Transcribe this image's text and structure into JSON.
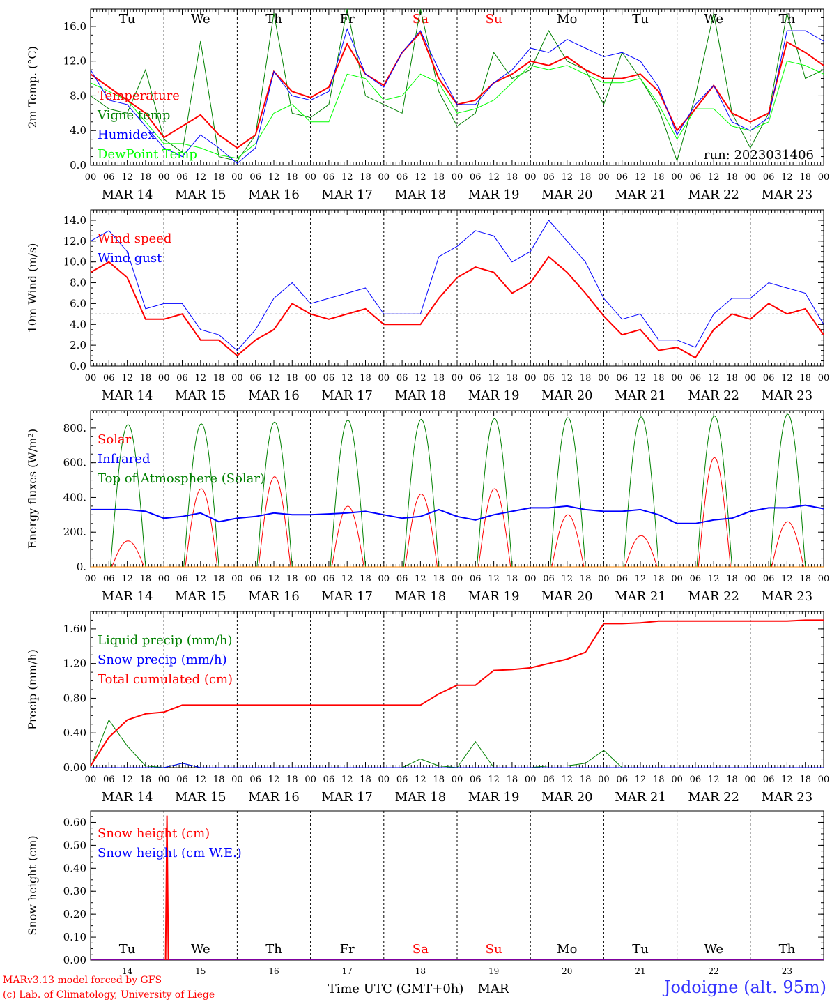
{
  "site": "Jodoigne (alt. 95m)",
  "footer": {
    "model": "MARv3.13 model forced by GFS",
    "lab": "(c) Lab. of Climatology, University of Liege"
  },
  "chart_data": [
    {
      "type": "line",
      "id": "temp",
      "ylabel": "2m Temp. (°C)",
      "ylim": [
        0,
        18
      ],
      "yticks": [
        "0.0",
        "4.0",
        "8.0",
        "12.0",
        "16.0"
      ],
      "annotation": "run: 2023031406",
      "day_labels": [
        "Tu",
        "We",
        "Th",
        "Fr",
        "Sa",
        "Su",
        "Mo",
        "Tu",
        "We",
        "Th"
      ],
      "date_labels": [
        "MAR 14",
        "MAR 15",
        "MAR 16",
        "MAR 17",
        "MAR 18",
        "MAR 19",
        "MAR 20",
        "MAR 21",
        "MAR 22",
        "MAR 23"
      ],
      "hour_labels": [
        "00",
        "06",
        "12",
        "18"
      ],
      "x_hours": [
        0,
        6,
        12,
        18,
        24,
        30,
        36,
        42,
        48,
        54,
        60,
        66,
        72,
        78,
        84,
        90,
        96,
        102,
        108,
        114,
        120,
        126,
        132,
        138,
        144,
        150,
        156,
        162,
        168,
        174,
        180,
        186,
        192,
        198,
        204,
        210,
        216,
        222,
        228,
        234,
        240
      ],
      "series": [
        {
          "name": "Temperature",
          "color": "#ff0000",
          "width": 2,
          "values": [
            10.5,
            9.0,
            7.5,
            6.0,
            3.2,
            4.5,
            5.8,
            3.5,
            2.0,
            3.5,
            10.8,
            8.5,
            7.8,
            9.0,
            14.0,
            10.5,
            9.2,
            13.0,
            15.3,
            10.0,
            7.0,
            7.5,
            9.5,
            10.5,
            12.0,
            11.5,
            12.5,
            11.0,
            10.0,
            10.0,
            10.5,
            8.5,
            4.0,
            6.5,
            9.2,
            6.0,
            5.0,
            6.0,
            14.2,
            13.0,
            11.5
          ]
        },
        {
          "name": "Vigne temp",
          "color": "#008000",
          "width": 1,
          "values": [
            8.0,
            6.5,
            6.0,
            11.0,
            3.0,
            1.5,
            14.3,
            1.0,
            0.5,
            3.5,
            17.5,
            6.0,
            5.5,
            7.0,
            18.0,
            8.0,
            7.0,
            6.0,
            18.0,
            8.5,
            4.5,
            6.0,
            13.0,
            10.0,
            11.0,
            15.5,
            12.0,
            11.0,
            7.0,
            13.0,
            10.0,
            6.5,
            0.5,
            8.0,
            17.5,
            6.0,
            2.0,
            6.0,
            17.5,
            10.0,
            11.0
          ]
        },
        {
          "name": "Humidex",
          "color": "#0000ff",
          "width": 1,
          "values": [
            11.0,
            7.5,
            7.0,
            4.5,
            2.0,
            1.0,
            3.5,
            2.0,
            0.2,
            2.0,
            10.8,
            8.0,
            7.5,
            8.5,
            15.7,
            10.5,
            9.0,
            13.0,
            15.5,
            11.0,
            7.0,
            7.0,
            9.5,
            11.0,
            13.5,
            13.0,
            14.5,
            13.5,
            12.5,
            13.0,
            12.0,
            9.0,
            3.5,
            7.0,
            9.2,
            5.0,
            4.0,
            5.5,
            15.5,
            15.5,
            14.3
          ]
        },
        {
          "name": "DewPoint Temp",
          "color": "#00ff00",
          "width": 1,
          "values": [
            9.5,
            8.5,
            7.5,
            5.0,
            2.5,
            2.5,
            2.0,
            1.2,
            0.8,
            2.5,
            6.0,
            7.0,
            5.0,
            5.0,
            10.5,
            10.0,
            7.5,
            8.0,
            10.5,
            9.5,
            6.0,
            6.5,
            7.5,
            9.5,
            11.5,
            11.0,
            11.5,
            10.5,
            9.5,
            9.5,
            10.0,
            7.0,
            3.0,
            6.5,
            6.5,
            4.5,
            4.0,
            5.0,
            12.0,
            11.5,
            10.5
          ]
        }
      ]
    },
    {
      "type": "line",
      "id": "wind",
      "ylabel": "10m Wind (m/s)",
      "ylim": [
        0,
        15
      ],
      "yticks": [
        "0.0",
        "2.0",
        "4.0",
        "6.0",
        "8.0",
        "10.0",
        "12.0",
        "14.0"
      ],
      "reference_line": 5.0,
      "date_labels": [
        "MAR 14",
        "MAR 15",
        "MAR 16",
        "MAR 17",
        "MAR 18",
        "MAR 19",
        "MAR 20",
        "MAR 21",
        "MAR 22",
        "MAR 23"
      ],
      "hour_labels": [
        "00",
        "06",
        "12",
        "18"
      ],
      "x_hours": [
        0,
        6,
        12,
        18,
        24,
        30,
        36,
        42,
        48,
        54,
        60,
        66,
        72,
        78,
        84,
        90,
        96,
        102,
        108,
        114,
        120,
        126,
        132,
        138,
        144,
        150,
        156,
        162,
        168,
        174,
        180,
        186,
        192,
        198,
        204,
        210,
        216,
        222,
        228,
        234,
        240
      ],
      "series": [
        {
          "name": "Wind speed",
          "color": "#ff0000",
          "width": 2,
          "values": [
            9.0,
            10.0,
            8.5,
            4.5,
            4.5,
            5.0,
            2.5,
            2.5,
            1.0,
            2.5,
            3.5,
            6.0,
            5.0,
            4.5,
            5.0,
            5.5,
            4.0,
            4.0,
            4.0,
            6.5,
            8.5,
            9.5,
            9.0,
            7.0,
            8.0,
            10.5,
            9.0,
            7.0,
            4.8,
            3.0,
            3.5,
            1.5,
            1.8,
            0.8,
            3.5,
            5.0,
            4.5,
            6.0,
            5.0,
            5.5,
            3.0
          ]
        },
        {
          "name": "Wind gust",
          "color": "#0000ff",
          "width": 1,
          "values": [
            12.0,
            13.0,
            11.0,
            5.5,
            6.0,
            6.0,
            3.5,
            3.0,
            1.5,
            3.5,
            6.5,
            8.0,
            6.0,
            6.5,
            7.0,
            7.5,
            5.0,
            5.0,
            5.0,
            10.5,
            11.5,
            13.0,
            12.5,
            10.0,
            11.0,
            14.0,
            12.0,
            10.0,
            6.5,
            4.5,
            5.0,
            2.5,
            2.5,
            1.8,
            5.0,
            6.5,
            6.5,
            8.0,
            7.5,
            7.0,
            4.0
          ]
        }
      ]
    },
    {
      "type": "line",
      "id": "energy",
      "ylabel": "Energy fluxes (W/m²)",
      "ylim": [
        0,
        900
      ],
      "yticks": [
        "0.",
        "200.",
        "400.",
        "600.",
        "800."
      ],
      "date_labels": [
        "MAR 14",
        "MAR 15",
        "MAR 16",
        "MAR 17",
        "MAR 18",
        "MAR 19",
        "MAR 20",
        "MAR 21",
        "MAR 22",
        "MAR 23"
      ],
      "hour_labels": [
        "00",
        "06",
        "12",
        "18"
      ],
      "x_hours": [
        0,
        6,
        12,
        18,
        24,
        30,
        36,
        42,
        48,
        54,
        60,
        66,
        72,
        78,
        84,
        90,
        96,
        102,
        108,
        114,
        120,
        126,
        132,
        138,
        144,
        150,
        156,
        162,
        168,
        174,
        180,
        186,
        192,
        198,
        204,
        210,
        216,
        222,
        228,
        234,
        240
      ],
      "toa_peaks": [
        820,
        825,
        835,
        845,
        850,
        855,
        860,
        865,
        870,
        880
      ],
      "series": [
        {
          "name": "Solar",
          "color": "#ff0000",
          "width": 1,
          "values": [
            0,
            0,
            150,
            0,
            0,
            0,
            450,
            0,
            0,
            0,
            520,
            0,
            0,
            0,
            350,
            0,
            0,
            0,
            420,
            0,
            0,
            0,
            450,
            0,
            0,
            0,
            300,
            0,
            0,
            0,
            180,
            0,
            0,
            0,
            630,
            0,
            0,
            0,
            260,
            0,
            0
          ]
        },
        {
          "name": "Infrared",
          "color": "#0000ff",
          "width": 2,
          "values": [
            330,
            330,
            330,
            320,
            280,
            290,
            310,
            260,
            280,
            290,
            310,
            300,
            300,
            305,
            310,
            320,
            300,
            280,
            290,
            330,
            290,
            270,
            300,
            320,
            340,
            340,
            350,
            330,
            320,
            320,
            330,
            300,
            250,
            250,
            270,
            280,
            320,
            340,
            340,
            355,
            335
          ]
        },
        {
          "name": "Top of Atmosphere (Solar)",
          "color": "#008000",
          "width": 1,
          "values": [
            0,
            0,
            800,
            0,
            0,
            0,
            810,
            0,
            0,
            0,
            820,
            0,
            0,
            0,
            830,
            0,
            0,
            0,
            840,
            0,
            0,
            0,
            845,
            0,
            0,
            0,
            850,
            0,
            0,
            0,
            855,
            0,
            0,
            0,
            860,
            0,
            0,
            0,
            865,
            0,
            0
          ]
        }
      ]
    },
    {
      "type": "line",
      "id": "precip",
      "ylabel": "Precip (mm/h)",
      "ylim": [
        0,
        1.8
      ],
      "yticks": [
        "0.00",
        "0.40",
        "0.80",
        "1.20",
        "1.60"
      ],
      "date_labels": [
        "MAR 14",
        "MAR 15",
        "MAR 16",
        "MAR 17",
        "MAR 18",
        "MAR 19",
        "MAR 20",
        "MAR 21",
        "MAR 22",
        "MAR 23"
      ],
      "hour_labels": [
        "00",
        "06",
        "12",
        "18"
      ],
      "x_hours": [
        0,
        6,
        12,
        18,
        24,
        30,
        36,
        42,
        48,
        54,
        60,
        66,
        72,
        78,
        84,
        90,
        96,
        102,
        108,
        114,
        120,
        126,
        132,
        138,
        144,
        150,
        156,
        162,
        168,
        174,
        180,
        186,
        192,
        198,
        204,
        210,
        216,
        222,
        228,
        234,
        240
      ],
      "series": [
        {
          "name": "Liquid precip (mm/h)",
          "color": "#008000",
          "width": 1,
          "values": [
            0,
            0.55,
            0.25,
            0.02,
            0,
            0.05,
            0,
            0,
            0,
            0,
            0,
            0,
            0,
            0,
            0,
            0,
            0,
            0,
            0.1,
            0.02,
            0,
            0.3,
            0,
            0,
            0,
            0.02,
            0.02,
            0.05,
            0.2,
            0,
            0,
            0,
            0,
            0,
            0,
            0,
            0,
            0,
            0,
            0,
            0
          ]
        },
        {
          "name": "Snow precip (mm/h)",
          "color": "#0000ff",
          "width": 1,
          "values": [
            0,
            0,
            0,
            0,
            0,
            0.05,
            0,
            0,
            0,
            0,
            0,
            0,
            0,
            0,
            0,
            0,
            0,
            0,
            0,
            0,
            0,
            0,
            0,
            0,
            0,
            0,
            0,
            0,
            0,
            0,
            0,
            0,
            0,
            0,
            0,
            0,
            0,
            0,
            0,
            0,
            0
          ]
        },
        {
          "name": "Total cumulated (cm)",
          "color": "#ff0000",
          "width": 2,
          "values": [
            0.02,
            0.35,
            0.55,
            0.62,
            0.64,
            0.72,
            0.72,
            0.72,
            0.72,
            0.72,
            0.72,
            0.72,
            0.72,
            0.72,
            0.72,
            0.72,
            0.72,
            0.72,
            0.72,
            0.85,
            0.95,
            0.95,
            1.12,
            1.13,
            1.15,
            1.2,
            1.25,
            1.33,
            1.66,
            1.66,
            1.67,
            1.69,
            1.69,
            1.69,
            1.69,
            1.69,
            1.69,
            1.69,
            1.69,
            1.7,
            1.7
          ]
        }
      ]
    },
    {
      "type": "line",
      "id": "snow",
      "ylabel": "Snow height (cm)",
      "ylim": [
        0,
        0.65
      ],
      "yticks": [
        "0.00",
        "0.10",
        "0.20",
        "0.30",
        "0.40",
        "0.50",
        "0.60"
      ],
      "day_labels": [
        "Tu",
        "We",
        "Th",
        "Fr",
        "Sa",
        "Su",
        "Mo",
        "Tu",
        "We",
        "Th"
      ],
      "day_numbers": [
        "14",
        "15",
        "16",
        "17",
        "18",
        "19",
        "20",
        "21",
        "22",
        "23"
      ],
      "xlabel": "Time UTC (GMT+0h)",
      "month": "MAR",
      "series": [
        {
          "name": "Snow height (cm)",
          "color": "#ff0000",
          "width": 2,
          "spike_hour": 25,
          "spike_value": 0.63
        },
        {
          "name": "Snow height (cm W.E.)",
          "color": "#0000ff",
          "width": 1
        }
      ]
    }
  ]
}
